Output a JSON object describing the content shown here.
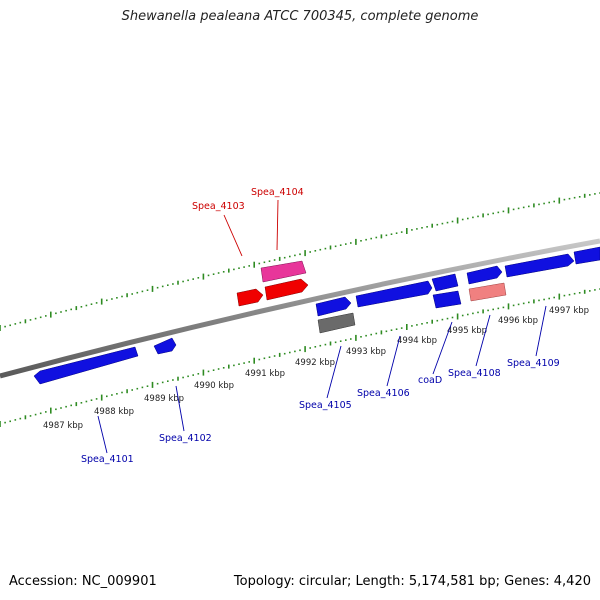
{
  "title": "Shewanella pealeana ATCC 700345, complete genome",
  "footer": {
    "accession": "Accession: NC_009901",
    "summary": "Topology: circular; Length: 5,174,581 bp; Genes: 4,420"
  },
  "colors": {
    "backbone": "#8a8a8a",
    "tick": "#2e8b22",
    "gene_blue": "#1010e0",
    "gene_red": "#f00000",
    "gene_pink": "#e8369a",
    "gene_salmon": "#f08080",
    "gene_gray": "#6a6a6a",
    "label_blue": "#0000aa",
    "label_red": "#cc0000"
  },
  "scale_labels": [
    "4987 kbp",
    "4988 kbp",
    "4989 kbp",
    "4990 kbp",
    "4991 kbp",
    "4992 kbp",
    "4993 kbp",
    "4994 kbp",
    "4995 kbp",
    "4996 kbp",
    "4997 kbp"
  ],
  "gene_labels": [
    {
      "text": "Spea_4101",
      "color": "label_blue"
    },
    {
      "text": "Spea_4102",
      "color": "label_blue"
    },
    {
      "text": "Spea_4103",
      "color": "label_red"
    },
    {
      "text": "Spea_4104",
      "color": "label_red"
    },
    {
      "text": "Spea_4105",
      "color": "label_blue"
    },
    {
      "text": "Spea_4106",
      "color": "label_blue"
    },
    {
      "text": "coaD",
      "color": "label_blue"
    },
    {
      "text": "Spea_4108",
      "color": "label_blue"
    },
    {
      "text": "Spea_4109",
      "color": "label_blue"
    }
  ]
}
